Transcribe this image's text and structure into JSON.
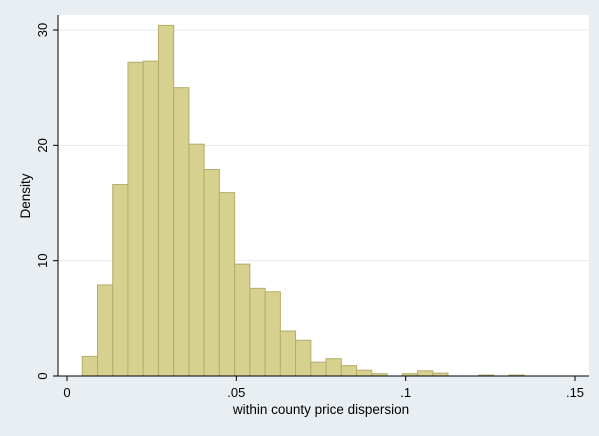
{
  "chart_data": {
    "type": "bar",
    "title": "",
    "xlabel": "within county price dispersion",
    "ylabel": "Density",
    "xlim": [
      0,
      0.15
    ],
    "ylim": [
      0,
      31
    ],
    "x_ticks": [
      {
        "value": 0,
        "label": "0"
      },
      {
        "value": 0.05,
        "label": ".05"
      },
      {
        "value": 0.1,
        "label": ".1"
      },
      {
        "value": 0.15,
        "label": ".15"
      }
    ],
    "y_ticks": [
      {
        "value": 0,
        "label": "0"
      },
      {
        "value": 10,
        "label": "10"
      },
      {
        "value": 20,
        "label": "20"
      },
      {
        "value": 30,
        "label": "30"
      }
    ],
    "grid": true,
    "bin_width": 0.0045,
    "bins": [
      {
        "x": 0.0045,
        "density": 1.7
      },
      {
        "x": 0.009,
        "density": 7.9
      },
      {
        "x": 0.0135,
        "density": 16.6
      },
      {
        "x": 0.018,
        "density": 27.2
      },
      {
        "x": 0.0225,
        "density": 27.3
      },
      {
        "x": 0.027,
        "density": 30.4
      },
      {
        "x": 0.0315,
        "density": 25.0
      },
      {
        "x": 0.036,
        "density": 20.1
      },
      {
        "x": 0.0405,
        "density": 17.9
      },
      {
        "x": 0.045,
        "density": 15.9
      },
      {
        "x": 0.0495,
        "density": 9.7
      },
      {
        "x": 0.054,
        "density": 7.6
      },
      {
        "x": 0.0585,
        "density": 7.3
      },
      {
        "x": 0.063,
        "density": 3.9
      },
      {
        "x": 0.0675,
        "density": 3.1
      },
      {
        "x": 0.072,
        "density": 1.2
      },
      {
        "x": 0.0765,
        "density": 1.5
      },
      {
        "x": 0.081,
        "density": 0.9
      },
      {
        "x": 0.0855,
        "density": 0.5
      },
      {
        "x": 0.09,
        "density": 0.2
      },
      {
        "x": 0.0945,
        "density": 0.0
      },
      {
        "x": 0.099,
        "density": 0.2
      },
      {
        "x": 0.1035,
        "density": 0.45
      },
      {
        "x": 0.108,
        "density": 0.25
      },
      {
        "x": 0.1215,
        "density": 0.08
      },
      {
        "x": 0.1305,
        "density": 0.08
      }
    ],
    "colors": {
      "bar_fill": "#d7d18f",
      "bar_stroke": "#b3ad6a",
      "background": "#e8eef2",
      "plot_background": "#ffffff",
      "grid": "#e6ebee"
    }
  }
}
